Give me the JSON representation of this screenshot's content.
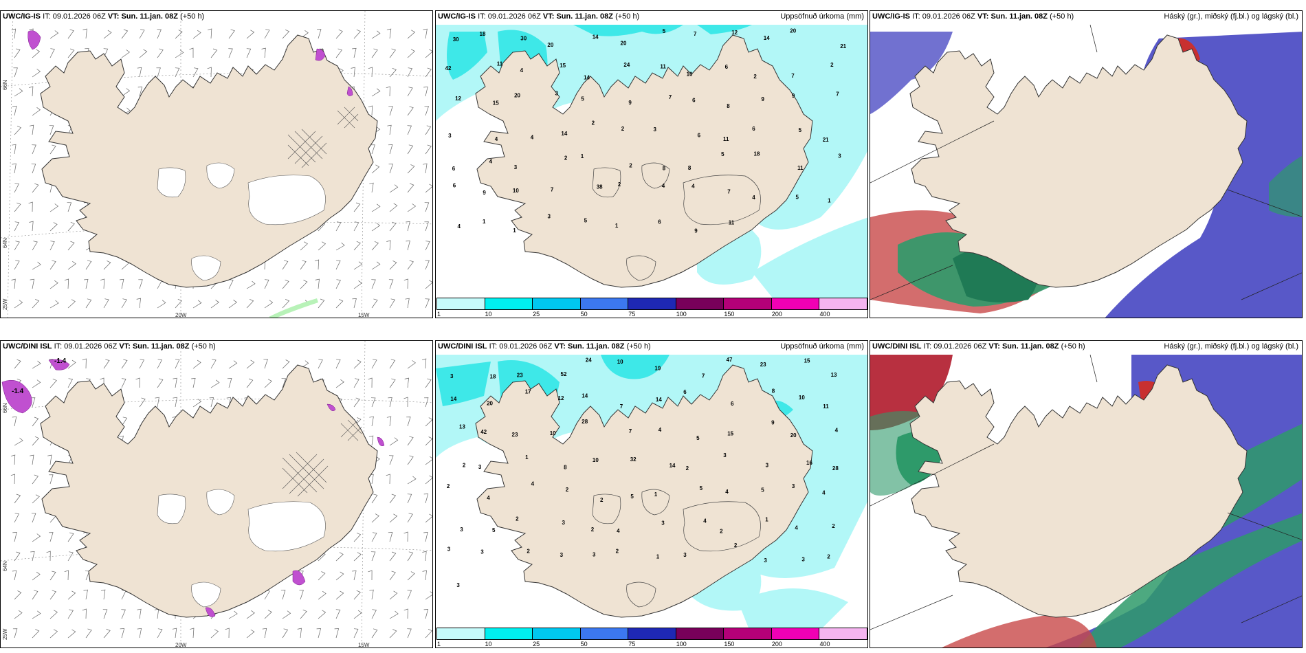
{
  "rows": [
    {
      "model": "UWC/IG-IS",
      "it_label": "IT:",
      "it_value": "09.01.2026 06Z",
      "vt_label": "VT:",
      "vt_value": "Sun. 11.jan. 08Z",
      "lead": "(+50 h)"
    },
    {
      "model": "UWC/DINI ISL",
      "it_label": "IT:",
      "it_value": "09.01.2026 06Z",
      "vt_label": "VT:",
      "vt_value": "Sun. 11.jan. 08Z",
      "lead": "(+50 h)"
    }
  ],
  "precip_title": "Uppsöfnuð úrkoma (mm)",
  "cloud_title": "Háský (gr.), miðský (fj.bl.) og lágský (bl.)",
  "axes": {
    "lon_20": "20W",
    "lon_15": "15W",
    "lat_66": "66N",
    "lat_64": "64N",
    "lon_25": "25W"
  },
  "top_wind_marks": [],
  "bottom_wind_marks": [
    "-1.4",
    "-1.4"
  ],
  "colorbar": {
    "ticks": [
      "1",
      "10",
      "25",
      "50",
      "75",
      "100",
      "150",
      "200",
      "400"
    ],
    "colors": [
      "#c6fbfb",
      "#00f0f0",
      "#00c8f0",
      "#3c78f0",
      "#1e28b4",
      "#78005a",
      "#b40078",
      "#f000b4",
      "#f5b4f0"
    ]
  },
  "colors": {
    "land": "#efe3d3",
    "precip_light": "#b2f7f7",
    "precip_mid": "#3ee8e8",
    "high_cloud": "#5858c8",
    "mid_cloud": "#c83030",
    "low_cloud": "#2e9a6a"
  },
  "precip_top_values": [
    "30",
    "18",
    "30",
    "20",
    "14",
    "20",
    "5",
    "7",
    "12",
    "14",
    "20",
    "21",
    "42",
    "11",
    "4",
    "15",
    "14",
    "24",
    "11",
    "10",
    "6",
    "2",
    "7",
    "2",
    "12",
    "15",
    "20",
    "3",
    "5",
    "9",
    "7",
    "6",
    "8",
    "9",
    "9",
    "7",
    "3",
    "4",
    "4",
    "14",
    "2",
    "2",
    "3",
    "6",
    "11",
    "6",
    "5",
    "21",
    "6",
    "4",
    "3",
    "2",
    "1",
    "2",
    "8",
    "8",
    "5",
    "18",
    "11",
    "3",
    "6",
    "9",
    "10",
    "7",
    "38",
    "2",
    "4",
    "4",
    "7",
    "4",
    "5",
    "1",
    "4",
    "1",
    "1",
    "3",
    "5",
    "1",
    "6",
    "9",
    "11"
  ],
  "precip_bottom_values": [
    "3",
    "18",
    "23",
    "52",
    "24",
    "10",
    "19",
    "7",
    "47",
    "23",
    "15",
    "13",
    "14",
    "20",
    "17",
    "12",
    "14",
    "7",
    "14",
    "6",
    "6",
    "8",
    "10",
    "11",
    "13",
    "42",
    "23",
    "10",
    "28",
    "7",
    "4",
    "5",
    "15",
    "9",
    "20",
    "4",
    "2",
    "3",
    "1",
    "8",
    "10",
    "32",
    "14",
    "2",
    "3",
    "3",
    "16",
    "28",
    "2",
    "4",
    "4",
    "2",
    "2",
    "5",
    "1",
    "5",
    "4",
    "5",
    "3",
    "4",
    "3",
    "5",
    "2",
    "3",
    "2",
    "4",
    "3",
    "4",
    "2",
    "1",
    "4",
    "2",
    "3",
    "3",
    "2",
    "3",
    "3",
    "2",
    "1",
    "3",
    "2",
    "3",
    "3",
    "2",
    "3"
  ]
}
